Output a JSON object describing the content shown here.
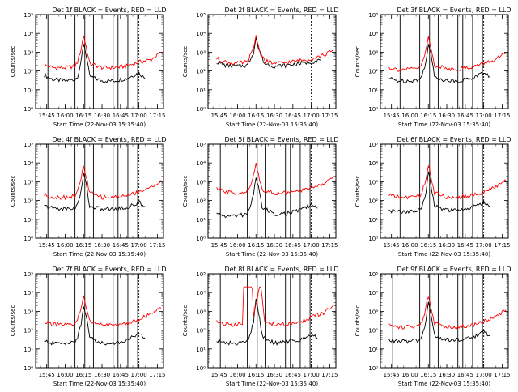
{
  "colors": {
    "black_series": "#000000",
    "red_series": "#ff0000",
    "axes": "#000000",
    "background": "#ffffff"
  },
  "common": {
    "xlabel": "Start Time (22-Nov-03 15:35:40)",
    "ylabel": "Counts/sec",
    "x_ticks": [
      "15:45",
      "16:00",
      "16:15",
      "16:30",
      "16:45",
      "17:00",
      "17:15"
    ],
    "y_ticks": [
      "10⁰",
      "10¹",
      "10²",
      "10³",
      "10⁴",
      "10⁵"
    ]
  },
  "chart_data": [
    {
      "type": "line",
      "title": "Det 1f BLACK = Events, RED = LLD",
      "xlabel": "Start Time (22-Nov-03 15:35:40)",
      "ylabel": "Counts/sec",
      "ylog": true,
      "ylim": [
        1,
        100000
      ],
      "xlim": [
        "15:36",
        "17:20"
      ],
      "x_ticks": [
        "15:45",
        "16:00",
        "16:15",
        "16:30",
        "16:45",
        "17:00",
        "17:15"
      ],
      "solid_vlines": [
        "15:46",
        "16:08",
        "16:16",
        "16:23",
        "16:39",
        "16:43",
        "16:51",
        "16:59"
      ],
      "dashed_vlines": [
        "17:00"
      ],
      "series": [
        {
          "color": "#000000",
          "x": [
            "15:43",
            "15:50",
            "16:00",
            "16:08",
            "16:10",
            "16:13",
            "16:15",
            "16:17",
            "16:20",
            "16:30",
            "16:40",
            "16:50",
            "17:00",
            "17:05"
          ],
          "y": [
            60,
            35,
            30,
            35,
            50,
            300,
            3000,
            800,
            50,
            30,
            30,
            40,
            80,
            40
          ]
        },
        {
          "color": "#ff0000",
          "x": [
            "15:43",
            "15:50",
            "16:00",
            "16:08",
            "16:10",
            "16:13",
            "16:15",
            "16:17",
            "16:20",
            "16:30",
            "16:40",
            "16:50",
            "17:00",
            "17:10",
            "17:18"
          ],
          "y": [
            200,
            150,
            150,
            180,
            300,
            1500,
            8000,
            2000,
            250,
            150,
            150,
            180,
            300,
            400,
            1000
          ]
        }
      ]
    },
    {
      "type": "line",
      "title": "Det 2f BLACK = Events, RED = LLD",
      "xlabel": "Start Time (22-Nov-03 15:35:40)",
      "ylabel": "Counts/sec",
      "ylog": true,
      "ylim": [
        1,
        100000
      ],
      "xlim": [
        "15:36",
        "17:20"
      ],
      "x_ticks": [
        "15:45",
        "16:00",
        "16:15",
        "16:30",
        "16:45",
        "17:00",
        "17:15"
      ],
      "solid_vlines": [],
      "dashed_vlines": [
        "17:00"
      ],
      "series": [
        {
          "color": "#000000",
          "x": [
            "15:43",
            "15:50",
            "16:00",
            "16:08",
            "16:13",
            "16:15",
            "16:17",
            "16:22",
            "16:30",
            "16:40",
            "16:50",
            "17:00",
            "17:08"
          ],
          "y": [
            300,
            200,
            180,
            200,
            1000,
            6000,
            1500,
            250,
            180,
            200,
            250,
            300,
            400
          ]
        },
        {
          "color": "#ff0000",
          "x": [
            "15:43",
            "15:50",
            "16:00",
            "16:08",
            "16:13",
            "16:15",
            "16:17",
            "16:22",
            "16:30",
            "16:40",
            "16:50",
            "17:00",
            "17:10",
            "17:18"
          ],
          "y": [
            450,
            300,
            250,
            300,
            1500,
            8000,
            2000,
            350,
            250,
            280,
            350,
            450,
            700,
            1200
          ]
        }
      ]
    },
    {
      "type": "line",
      "title": "Det 3f BLACK = Events, RED = LLD",
      "xlabel": "Start Time (22-Nov-03 15:35:40)",
      "ylabel": "Counts/sec",
      "ylog": true,
      "ylim": [
        1,
        100000
      ],
      "xlim": [
        "15:36",
        "17:20"
      ],
      "x_ticks": [
        "15:45",
        "16:00",
        "16:15",
        "16:30",
        "16:45",
        "17:00",
        "17:15"
      ],
      "solid_vlines": [
        "15:52",
        "16:08",
        "16:16",
        "16:23",
        "16:39",
        "16:43",
        "16:51",
        "16:59"
      ],
      "dashed_vlines": [
        "17:00"
      ],
      "series": [
        {
          "color": "#000000",
          "x": [
            "15:43",
            "15:50",
            "16:00",
            "16:08",
            "16:10",
            "16:13",
            "16:15",
            "16:17",
            "16:20",
            "16:30",
            "16:40",
            "16:50",
            "17:00",
            "17:05"
          ],
          "y": [
            40,
            30,
            30,
            35,
            60,
            300,
            3000,
            800,
            50,
            30,
            30,
            40,
            80,
            50
          ]
        },
        {
          "color": "#ff0000",
          "x": [
            "15:43",
            "15:50",
            "16:00",
            "16:08",
            "16:10",
            "16:13",
            "16:15",
            "16:17",
            "16:20",
            "16:30",
            "16:40",
            "16:50",
            "17:00",
            "17:10",
            "17:18"
          ],
          "y": [
            150,
            120,
            120,
            150,
            250,
            1200,
            6000,
            1800,
            200,
            130,
            130,
            160,
            250,
            400,
            900
          ]
        }
      ]
    },
    {
      "type": "line",
      "title": "Det 4f BLACK = Events, RED = LLD",
      "xlabel": "Start Time (22-Nov-03 15:35:40)",
      "ylabel": "Counts/sec",
      "ylog": true,
      "ylim": [
        1,
        100000
      ],
      "xlim": [
        "15:36",
        "17:20"
      ],
      "x_ticks": [
        "15:45",
        "16:00",
        "16:15",
        "16:30",
        "16:45",
        "17:00",
        "17:15"
      ],
      "solid_vlines": [
        "15:46",
        "16:08",
        "16:16",
        "16:23",
        "16:39",
        "16:43",
        "16:51",
        "16:59"
      ],
      "dashed_vlines": [
        "17:00"
      ],
      "series": [
        {
          "color": "#000000",
          "x": [
            "15:43",
            "15:50",
            "16:00",
            "16:08",
            "16:10",
            "16:13",
            "16:15",
            "16:17",
            "16:20",
            "16:30",
            "16:40",
            "16:50",
            "17:00",
            "17:05"
          ],
          "y": [
            50,
            40,
            35,
            40,
            60,
            300,
            3000,
            800,
            50,
            35,
            35,
            40,
            80,
            50
          ]
        },
        {
          "color": "#ff0000",
          "x": [
            "15:43",
            "15:50",
            "16:00",
            "16:08",
            "16:10",
            "16:13",
            "16:15",
            "16:17",
            "16:20",
            "16:30",
            "16:40",
            "16:50",
            "17:00",
            "17:10",
            "17:18"
          ],
          "y": [
            200,
            150,
            150,
            180,
            300,
            1500,
            7000,
            2000,
            250,
            150,
            150,
            180,
            300,
            500,
            1200
          ]
        }
      ]
    },
    {
      "type": "line",
      "title": "Det 5f BLACK = Events, RED = LLD",
      "xlabel": "Start Time (22-Nov-03 15:35:40)",
      "ylabel": "Counts/sec",
      "ylog": true,
      "ylim": [
        1,
        100000
      ],
      "xlim": [
        "15:36",
        "17:20"
      ],
      "x_ticks": [
        "15:45",
        "16:00",
        "16:15",
        "16:30",
        "16:45",
        "17:00",
        "17:15"
      ],
      "solid_vlines": [
        "15:46",
        "16:08",
        "16:16",
        "16:23",
        "16:39",
        "16:43",
        "16:51",
        "16:59"
      ],
      "dashed_vlines": [
        "17:00"
      ],
      "series": [
        {
          "color": "#000000",
          "x": [
            "15:43",
            "15:50",
            "16:00",
            "16:08",
            "16:10",
            "16:13",
            "16:15",
            "16:17",
            "16:20",
            "16:30",
            "16:40",
            "16:50",
            "17:00",
            "17:05"
          ],
          "y": [
            20,
            15,
            15,
            20,
            40,
            200,
            2000,
            600,
            40,
            20,
            20,
            30,
            60,
            40
          ]
        },
        {
          "color": "#ff0000",
          "x": [
            "15:43",
            "15:50",
            "16:00",
            "16:08",
            "16:10",
            "16:13",
            "16:15",
            "16:17",
            "16:20",
            "16:30",
            "16:40",
            "16:50",
            "17:00",
            "17:10",
            "17:18"
          ],
          "y": [
            400,
            300,
            250,
            300,
            500,
            2000,
            8000,
            2500,
            400,
            250,
            250,
            300,
            500,
            800,
            2000
          ]
        }
      ]
    },
    {
      "type": "line",
      "title": "Det 6f BLACK = Events, RED = LLD",
      "xlabel": "Start Time (22-Nov-03 15:35:40)",
      "ylabel": "Counts/sec",
      "ylog": true,
      "ylim": [
        1,
        100000
      ],
      "xlim": [
        "15:36",
        "17:20"
      ],
      "x_ticks": [
        "15:45",
        "16:00",
        "16:15",
        "16:30",
        "16:45",
        "17:00",
        "17:15"
      ],
      "solid_vlines": [
        "15:52",
        "16:08",
        "16:16",
        "16:23",
        "16:39",
        "16:43",
        "16:51",
        "16:59"
      ],
      "dashed_vlines": [
        "17:00"
      ],
      "series": [
        {
          "color": "#000000",
          "x": [
            "15:43",
            "15:50",
            "16:00",
            "16:08",
            "16:10",
            "16:13",
            "16:15",
            "16:17",
            "16:20",
            "16:30",
            "16:40",
            "16:50",
            "17:00",
            "17:05"
          ],
          "y": [
            30,
            25,
            25,
            30,
            50,
            300,
            3000,
            800,
            50,
            30,
            30,
            40,
            80,
            50
          ]
        },
        {
          "color": "#ff0000",
          "x": [
            "15:43",
            "15:50",
            "16:00",
            "16:08",
            "16:10",
            "16:13",
            "16:15",
            "16:17",
            "16:20",
            "16:30",
            "16:40",
            "16:50",
            "17:00",
            "17:10",
            "17:18"
          ],
          "y": [
            200,
            150,
            150,
            180,
            300,
            1500,
            7000,
            2000,
            250,
            150,
            150,
            180,
            300,
            500,
            1200
          ]
        }
      ]
    },
    {
      "type": "line",
      "title": "Det 7f BLACK = Events, RED = LLD",
      "xlabel": "Start Time (22-Nov-03 15:35:40)",
      "ylabel": "Counts/sec",
      "ylog": true,
      "ylim": [
        1,
        100000
      ],
      "xlim": [
        "15:36",
        "17:20"
      ],
      "x_ticks": [
        "15:45",
        "16:00",
        "16:15",
        "16:30",
        "16:45",
        "17:00",
        "17:15"
      ],
      "solid_vlines": [
        "15:46",
        "16:08",
        "16:16",
        "16:23",
        "16:39",
        "16:43",
        "16:51",
        "16:59"
      ],
      "dashed_vlines": [
        "17:00"
      ],
      "series": [
        {
          "color": "#000000",
          "x": [
            "15:43",
            "15:50",
            "16:00",
            "16:08",
            "16:10",
            "16:13",
            "16:15",
            "16:17",
            "16:20",
            "16:30",
            "16:40",
            "16:50",
            "17:00",
            "17:05"
          ],
          "y": [
            25,
            20,
            20,
            25,
            40,
            200,
            2000,
            600,
            40,
            20,
            20,
            30,
            60,
            40
          ]
        },
        {
          "color": "#ff0000",
          "x": [
            "15:43",
            "15:50",
            "16:00",
            "16:08",
            "16:10",
            "16:13",
            "16:15",
            "16:17",
            "16:20",
            "16:30",
            "16:40",
            "16:50",
            "17:00",
            "17:10",
            "17:18"
          ],
          "y": [
            300,
            200,
            180,
            200,
            350,
            1500,
            6000,
            2000,
            300,
            180,
            180,
            220,
            400,
            700,
            1500
          ]
        }
      ]
    },
    {
      "type": "line",
      "title": "Det 8f BLACK = Events, RED = LLD",
      "xlabel": "Start Time (22-Nov-03 15:35:40)",
      "ylabel": "Counts/sec",
      "ylog": true,
      "ylim": [
        1,
        100000
      ],
      "xlim": [
        "15:36",
        "17:20"
      ],
      "x_ticks": [
        "15:45",
        "16:00",
        "16:15",
        "16:30",
        "16:45",
        "17:00",
        "17:15"
      ],
      "solid_vlines": [
        "15:46",
        "16:08",
        "16:16",
        "16:23",
        "16:39",
        "16:43",
        "16:51",
        "16:59"
      ],
      "dashed_vlines": [
        "17:00"
      ],
      "series": [
        {
          "color": "#000000",
          "x": [
            "15:43",
            "15:50",
            "16:00",
            "16:08",
            "16:10",
            "16:13",
            "16:15",
            "16:17",
            "16:20",
            "16:30",
            "16:40",
            "16:50",
            "17:00",
            "17:05"
          ],
          "y": [
            30,
            20,
            20,
            25,
            50,
            300,
            4000,
            1000,
            50,
            20,
            25,
            30,
            60,
            40
          ]
        },
        {
          "color": "#ff0000",
          "x": [
            "15:43",
            "15:50",
            "16:00",
            "16:04",
            "16:05",
            "16:12",
            "16:13",
            "16:18",
            "16:19",
            "16:22",
            "16:30",
            "16:40",
            "16:50",
            "17:00",
            "17:10",
            "17:18"
          ],
          "y": [
            300,
            200,
            200,
            250,
            20000,
            20000,
            500,
            20000,
            20000,
            300,
            200,
            200,
            250,
            500,
            800,
            2000
          ]
        }
      ]
    },
    {
      "type": "line",
      "title": "Det 9f BLACK = Events, RED = LLD",
      "xlabel": "Start Time (22-Nov-03 15:35:40)",
      "ylabel": "Counts/sec",
      "ylog": true,
      "ylim": [
        1,
        100000
      ],
      "xlim": [
        "15:36",
        "17:20"
      ],
      "x_ticks": [
        "15:45",
        "16:00",
        "16:15",
        "16:30",
        "16:45",
        "17:00",
        "17:15"
      ],
      "solid_vlines": [
        "15:46",
        "16:08",
        "16:16",
        "16:23",
        "16:39",
        "16:43",
        "16:51",
        "16:59"
      ],
      "dashed_vlines": [
        "17:00"
      ],
      "series": [
        {
          "color": "#000000",
          "x": [
            "15:43",
            "15:50",
            "16:00",
            "16:08",
            "16:10",
            "16:13",
            "16:15",
            "16:17",
            "16:20",
            "16:30",
            "16:40",
            "16:50",
            "17:00",
            "17:05"
          ],
          "y": [
            30,
            25,
            25,
            30,
            50,
            300,
            3000,
            800,
            50,
            30,
            30,
            40,
            80,
            50
          ]
        },
        {
          "color": "#ff0000",
          "x": [
            "15:43",
            "15:50",
            "16:00",
            "16:08",
            "16:10",
            "16:13",
            "16:15",
            "16:17",
            "16:20",
            "16:30",
            "16:40",
            "16:50",
            "17:00",
            "17:10",
            "17:18"
          ],
          "y": [
            200,
            150,
            150,
            180,
            300,
            1500,
            7000,
            2000,
            250,
            150,
            150,
            180,
            300,
            500,
            1200
          ]
        }
      ]
    }
  ]
}
